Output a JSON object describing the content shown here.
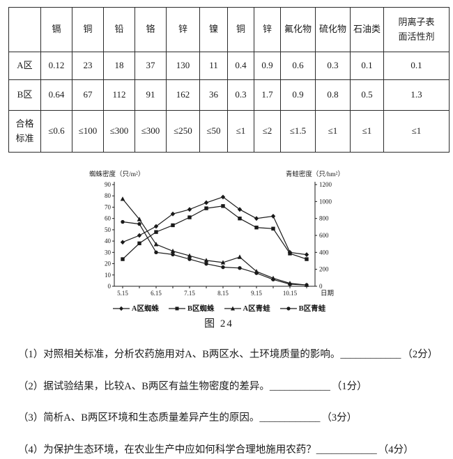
{
  "table": {
    "corner_label": "",
    "columns": [
      "镉",
      "铜",
      "铅",
      "铬",
      "锌",
      "镍",
      "铜",
      "锌",
      "氟化物",
      "硫化物",
      "石油类",
      "阴离子表\n面活性剂"
    ],
    "rows": [
      {
        "label": "A区",
        "values": [
          "0.12",
          "23",
          "18",
          "37",
          "130",
          "11",
          "0.4",
          "0.9",
          "0.6",
          "0.3",
          "0.1",
          "0.1"
        ]
      },
      {
        "label": "B区",
        "values": [
          "0.64",
          "67",
          "112",
          "91",
          "162",
          "36",
          "0.3",
          "1.7",
          "0.9",
          "0.8",
          "0.5",
          "1.3"
        ]
      },
      {
        "label": "合格\n标准",
        "values": [
          "≤0.6",
          "≤100",
          "≤300",
          "≤300",
          "≤250",
          "≤50",
          "≤1",
          "≤2",
          "≤1.5",
          "≤1",
          "≤1",
          "≤1"
        ]
      }
    ]
  },
  "chart_data": {
    "type": "line",
    "title": "图 24",
    "left_axis": {
      "label": "蜘蛛密度（只/m²）",
      "min": 0,
      "max": 90,
      "step": 10
    },
    "right_axis": {
      "label": "青蛙密度（只/hm²）",
      "min": 0,
      "max": 1200,
      "step": 200
    },
    "x": [
      "5.15",
      "6.1",
      "6.15",
      "7.1",
      "7.15",
      "8.1",
      "8.15",
      "9.1",
      "9.15",
      "10.1",
      "10.15",
      "11.1"
    ],
    "x_tick_labels": [
      "5.15",
      "6.15",
      "7.15",
      "8.15",
      "9.15",
      "10.15"
    ],
    "xlabel": "日期",
    "grid": false,
    "legend_position": "bottom",
    "series": [
      {
        "name": "A区蜘蛛",
        "axis": "left",
        "marker": "diamond",
        "values": [
          39,
          45,
          53,
          64,
          68,
          74,
          79,
          68,
          60,
          62,
          30,
          28
        ]
      },
      {
        "name": "B区蜘蛛",
        "axis": "left",
        "marker": "square",
        "values": [
          24,
          38,
          48,
          54,
          61,
          69,
          71,
          60,
          52,
          51,
          29,
          24
        ]
      },
      {
        "name": "A区青蛙",
        "axis": "right",
        "marker": "triangle",
        "values": [
          1030,
          790,
          495,
          415,
          360,
          305,
          280,
          345,
          175,
          95,
          35,
          15
        ]
      },
      {
        "name": "B区青蛙",
        "axis": "right",
        "marker": "circle",
        "values": [
          760,
          735,
          400,
          375,
          320,
          265,
          225,
          215,
          155,
          80,
          25,
          15
        ]
      }
    ],
    "line_color": "#1a1a1a"
  },
  "questions": [
    {
      "text": "（1）对照相关标准，分析农药施用对A、B两区水、土环境质量的影响。",
      "blank": "____________",
      "score": "（2分）"
    },
    {
      "text": "（2）据试验结果，比较A、B两区有益生物密度的差异。",
      "blank": "____________",
      "score": "（1分）"
    },
    {
      "text": "（3）简析A、B两区环境和生态质量差异产生的原因。",
      "blank": "____________",
      "score": "（3分）"
    },
    {
      "text": "（4）为保护生态环境，在农业生产中应如何科学合理地施用农药？",
      "blank": "____________",
      "score": "（4分）"
    }
  ]
}
